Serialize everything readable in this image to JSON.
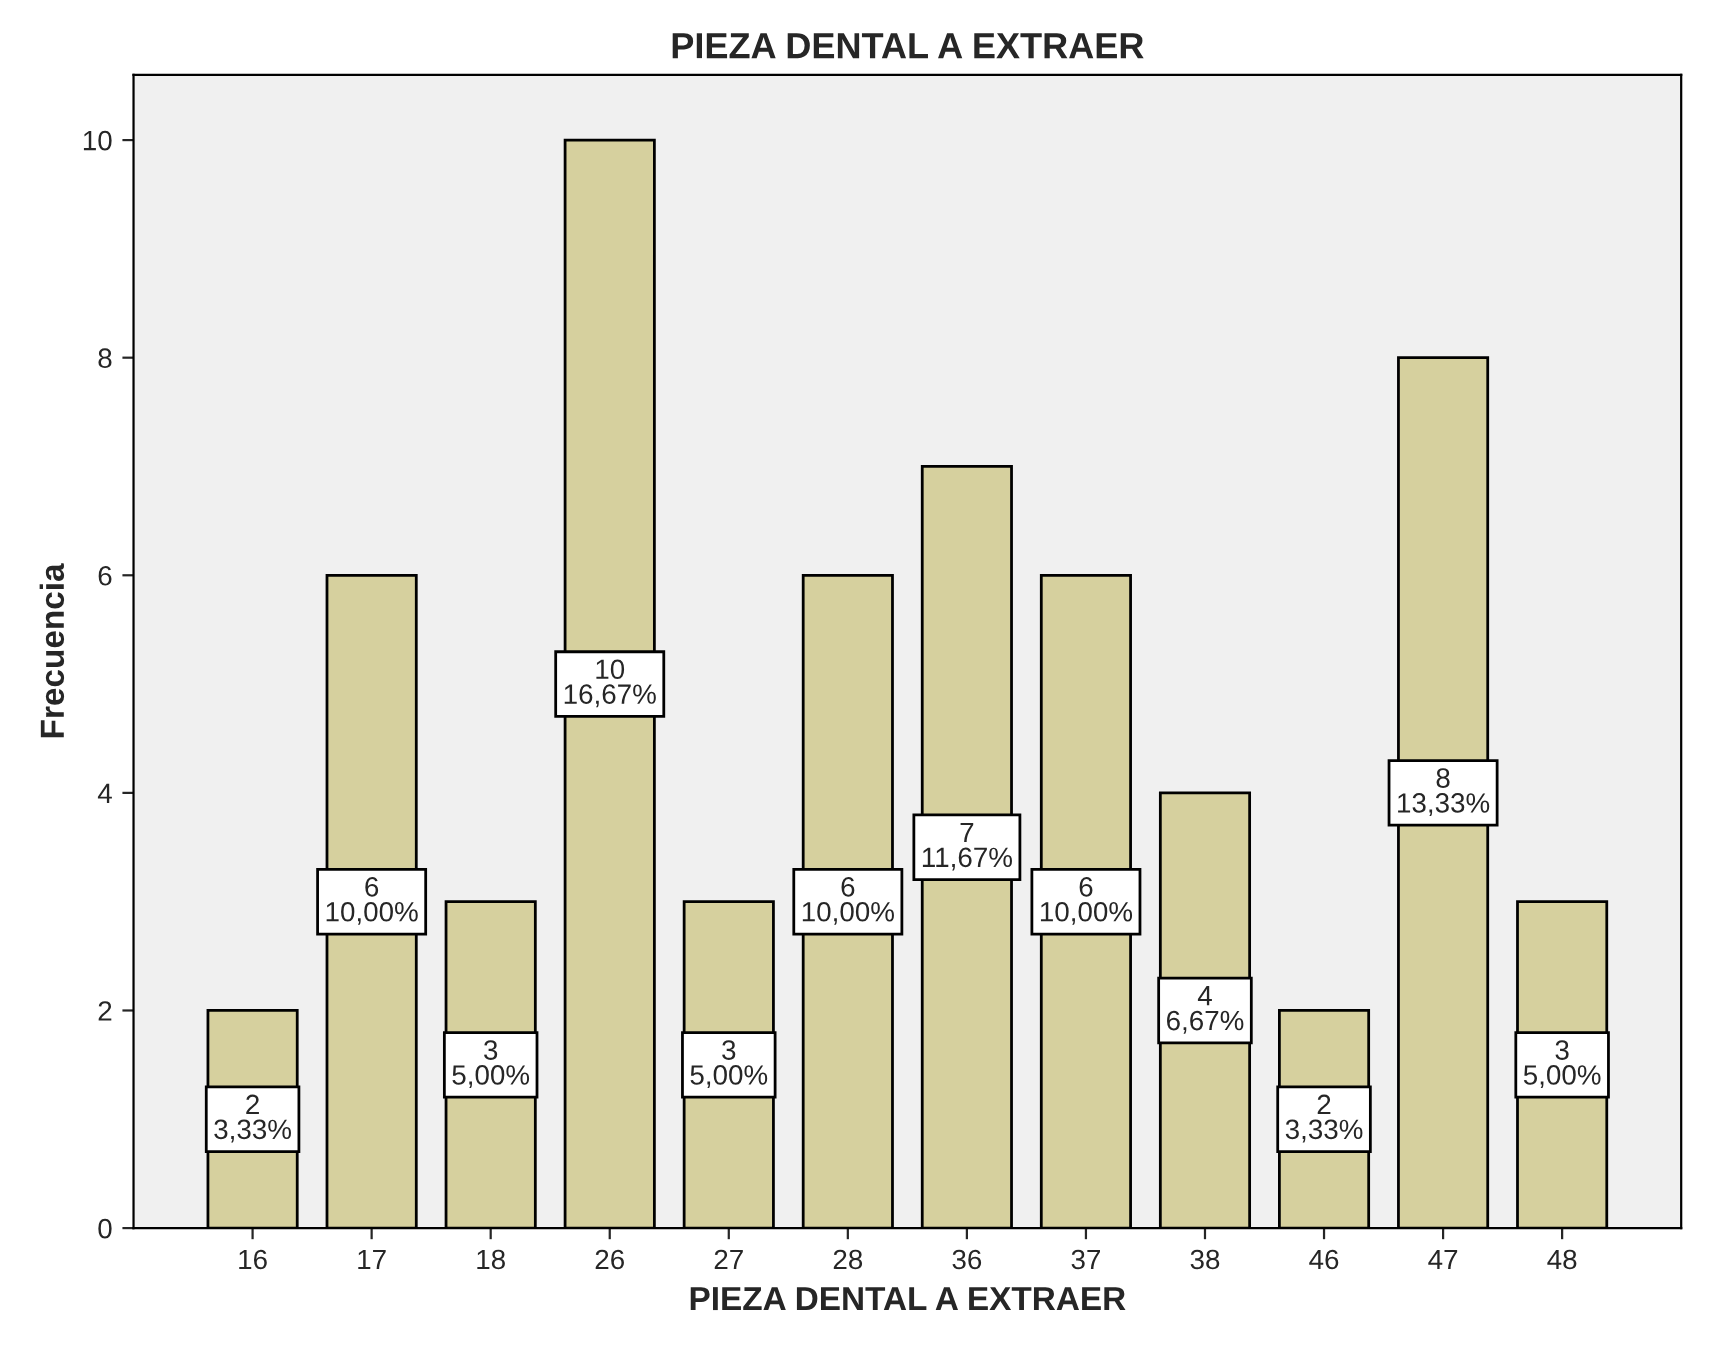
{
  "chart_data": {
    "type": "bar",
    "title": "PIEZA DENTAL A EXTRAER",
    "xlabel": "PIEZA DENTAL A EXTRAER",
    "ylabel": "Frecuencia",
    "categories": [
      "16",
      "17",
      "18",
      "26",
      "27",
      "28",
      "36",
      "37",
      "38",
      "46",
      "47",
      "48"
    ],
    "values": [
      2,
      6,
      3,
      10,
      3,
      6,
      7,
      6,
      4,
      2,
      8,
      3
    ],
    "value_labels": [
      "2\n3,33%",
      "6\n10,00%",
      "3\n5,00%",
      "10\n16,67%",
      "3\n5,00%",
      "6\n10,00%",
      "7\n11,67%",
      "6\n10,00%",
      "4\n6,67%",
      "2\n3,33%",
      "8\n13,33%",
      "3\n5,00%"
    ],
    "color": "#d6d09e",
    "ylim": [
      0,
      10.6
    ],
    "yticks": [
      0,
      2,
      4,
      6,
      8,
      10
    ],
    "grid": false
  }
}
